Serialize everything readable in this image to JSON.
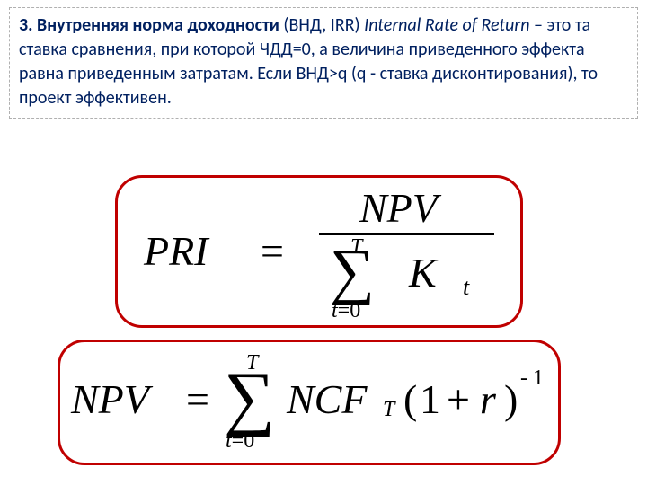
{
  "definition": {
    "num_title": "3. Внутренняя норма доходности",
    "abbrev": " (ВНД,  IRR)  ",
    "english": "Internal Rate of Return",
    "body": " – это та ставка сравнения, при которой ЧДД=0, а величина приведенного эффекта равна приведенным затратам. Если ВНД>q (q - ставка дисконтирования), то проект эффективен."
  },
  "formula1": {
    "lhs": "PRI",
    "eq": "=",
    "numerator": "NPV",
    "sum_upper": "T",
    "sum_lower_var": "t",
    "sum_lower_eq": "=",
    "sum_lower_val": "0",
    "term_base": "K",
    "term_sub": "t"
  },
  "formula2": {
    "lhs": "NPV",
    "eq": "=",
    "sum_upper": "T",
    "sum_lower_var": "t",
    "sum_lower_eq": "=",
    "sum_lower_val": "0",
    "ncf": "NCF",
    "ncf_sub": "T",
    "lparen": "(",
    "one": "1",
    "plus": "+",
    "r": "r",
    "rparen": ")",
    "exp": "- 1"
  },
  "style": {
    "text_color": "#002060",
    "border_color": "#c00000",
    "dash_color": "#b0b0b0",
    "bg": "#ffffff",
    "def_fontsize": 20,
    "formula_fontsize": 46,
    "script_fontsize": 24
  }
}
